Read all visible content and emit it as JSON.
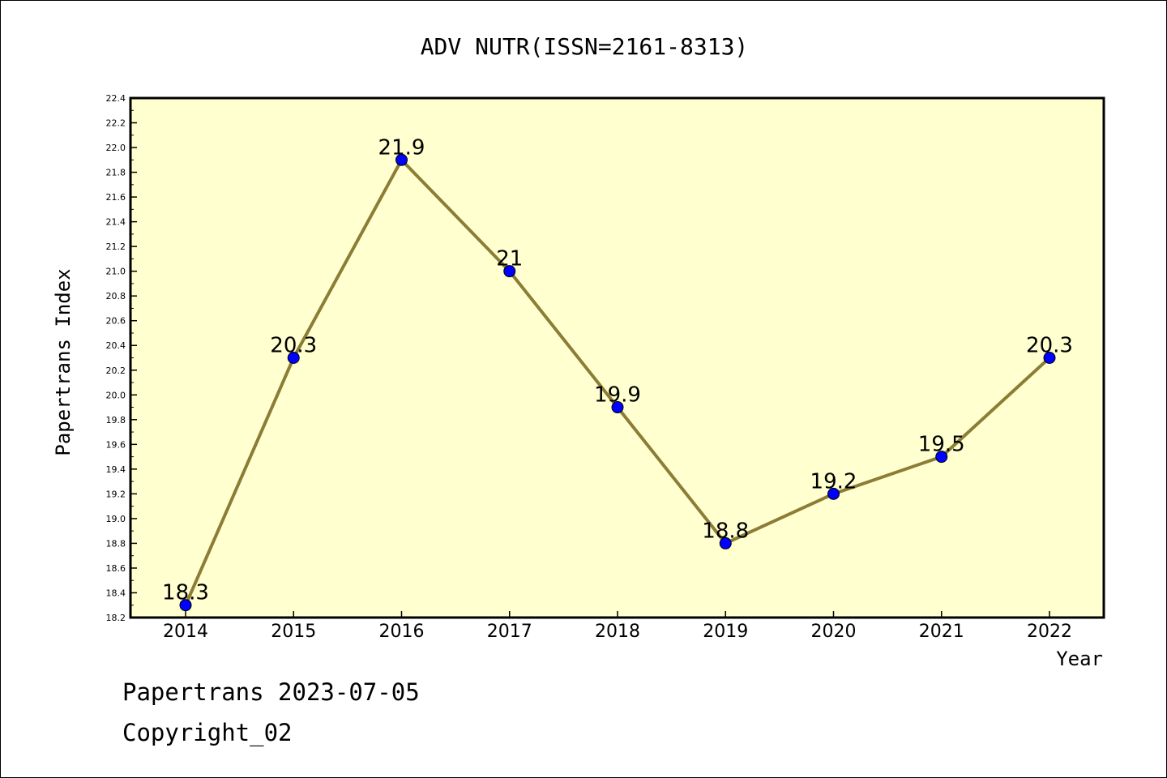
{
  "chart_data": {
    "type": "line",
    "title": "ADV NUTR(ISSN=2161-8313)",
    "xlabel": "Year",
    "ylabel": "Papertrans Index",
    "categories": [
      "2014",
      "2015",
      "2016",
      "2017",
      "2018",
      "2019",
      "2020",
      "2021",
      "2022"
    ],
    "series": [
      {
        "values": [
          18.3,
          20.3,
          21.9,
          21.0,
          19.9,
          18.8,
          19.2,
          19.5,
          20.3
        ],
        "labels": [
          "18.3",
          "20.3",
          "21.9",
          "21",
          "19.9",
          "18.8",
          "19.2",
          "19.5",
          "20.3"
        ]
      }
    ],
    "ylim": [
      18.2,
      22.4
    ],
    "yticks": [
      "18.2",
      "18.4",
      "18.6",
      "18.8",
      "19.0",
      "19.2",
      "19.4",
      "19.6",
      "19.8",
      "20.0",
      "20.2",
      "20.4",
      "20.6",
      "20.8",
      "21.0",
      "21.2",
      "21.4",
      "21.6",
      "21.8",
      "22.0",
      "22.2",
      "22.4"
    ],
    "grid": false,
    "colors": {
      "plot_bg": "#ffffd0",
      "line": "#8b7d35",
      "marker": "#0000ff"
    }
  },
  "footer": {
    "date_line": "Papertrans 2023-07-05",
    "copyright_line": "Copyright_02"
  }
}
